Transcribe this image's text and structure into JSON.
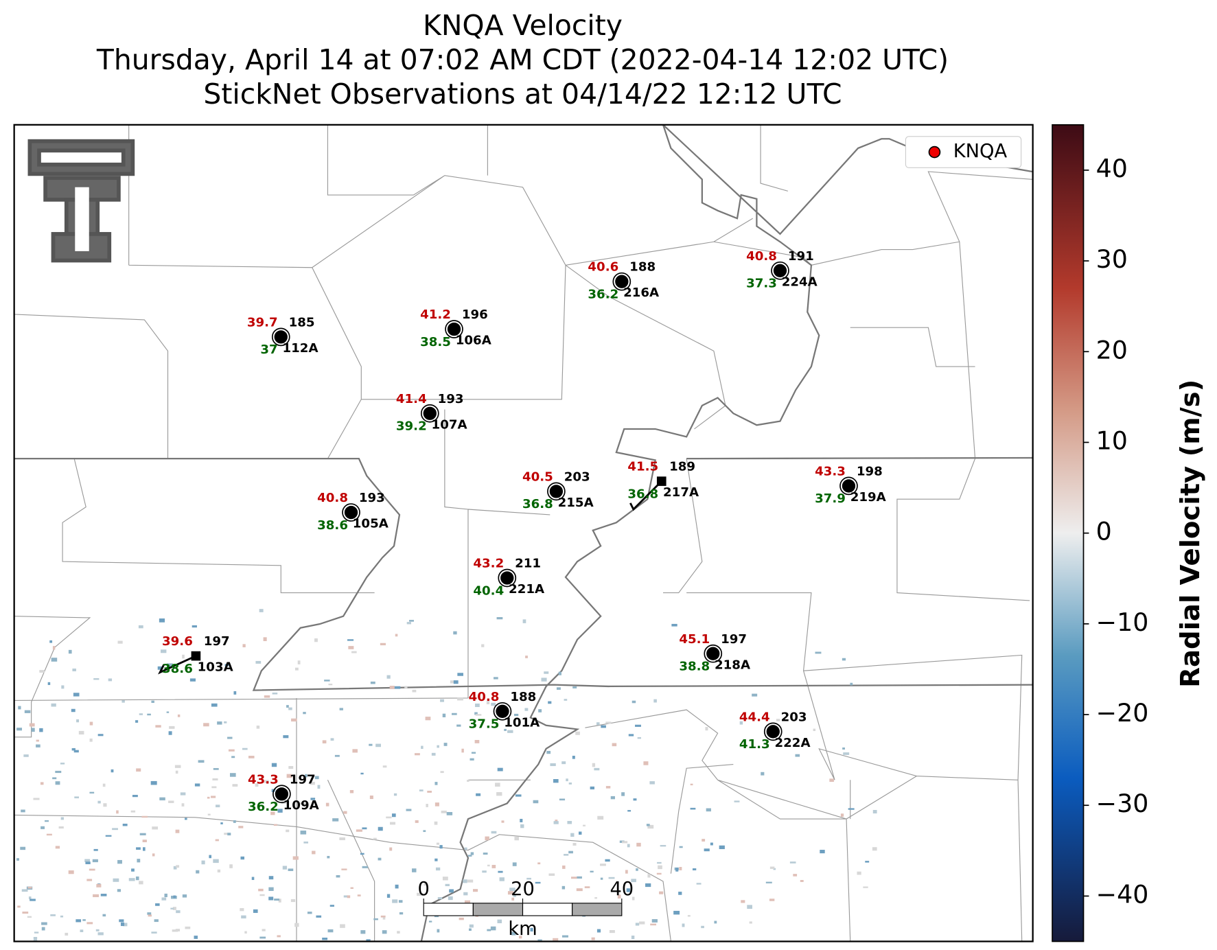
{
  "title": [
    "KNQA Velocity",
    "Thursday, April 14 at 07:02 AM CDT (2022-04-14 12:02 UTC)",
    "StickNet Observations at 04/14/22 12:12 UTC"
  ],
  "legend": "KNQA",
  "stations": [
    {
      "id": "112A",
      "temperature": 39.7,
      "dewpoint": 37.0,
      "wind_direction": 185
    },
    {
      "id": "106A",
      "temperature": 41.2,
      "dewpoint": 38.5,
      "wind_direction": 196
    },
    {
      "id": "216A",
      "temperature": 40.6,
      "dewpoint": 36.2,
      "wind_direction": 188
    },
    {
      "id": "224A",
      "temperature": 40.8,
      "dewpoint": 37.3,
      "wind_direction": 191
    },
    {
      "id": "107A",
      "temperature": 41.4,
      "dewpoint": 39.2,
      "wind_direction": 193
    },
    {
      "id": "105A",
      "temperature": 40.8,
      "dewpoint": 38.6,
      "wind_direction": 193
    },
    {
      "id": "215A",
      "temperature": 40.5,
      "dewpoint": 36.8,
      "wind_direction": 203
    },
    {
      "id": "217A",
      "temperature": 41.5,
      "dewpoint": 36.8,
      "wind_direction": 189
    },
    {
      "id": "219A",
      "temperature": 43.3,
      "dewpoint": 37.9,
      "wind_direction": 198
    },
    {
      "id": "221A",
      "temperature": 43.2,
      "dewpoint": 40.4,
      "wind_direction": 211
    },
    {
      "id": "103A",
      "temperature": 39.6,
      "dewpoint": 38.6,
      "wind_direction": 197
    },
    {
      "id": "218A",
      "temperature": 45.1,
      "dewpoint": 38.8,
      "wind_direction": 197
    },
    {
      "id": "101A",
      "temperature": 40.8,
      "dewpoint": 37.5,
      "wind_direction": 188
    },
    {
      "id": "222A",
      "temperature": 44.4,
      "dewpoint": 41.3,
      "wind_direction": 203
    },
    {
      "id": "109A",
      "temperature": 43.3,
      "dewpoint": 36.2,
      "wind_direction": 197
    }
  ],
  "colorbar": {
    "label": "Radial Velocity (m/s)",
    "lim": [
      -45,
      45
    ],
    "ticks": [
      {
        "value": -40,
        "label": "−40"
      },
      {
        "value": -30,
        "label": "−30"
      },
      {
        "value": -20,
        "label": "−20"
      },
      {
        "value": -10,
        "label": "−10"
      },
      0,
      10,
      20,
      30,
      40
    ]
  },
  "scalebar": {
    "label": "km",
    "lim": [
      0,
      40
    ],
    "ticks": [
      0,
      20,
      40
    ]
  }
}
